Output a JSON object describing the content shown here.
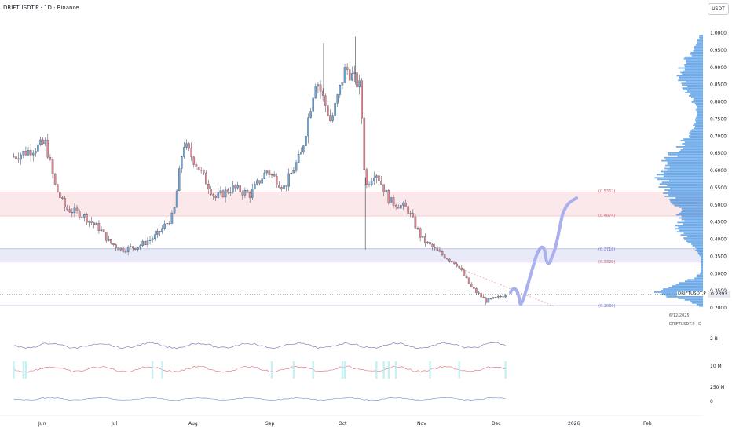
{
  "header": {
    "title": "DRIFTUSDT.P · 1D · Binance"
  },
  "currency_button": "USDT",
  "zones": {
    "upper_top_label": "(0.5367)",
    "upper_bottom_label": "(0.4674)",
    "lower_top_label": "(0.3718)",
    "lower_bottom_label": "(0.3329)",
    "base_label": "(0.2069)"
  },
  "last_price": {
    "symbol": "DRIFTUSDT.P",
    "value": "0.2393"
  },
  "info": {
    "date": "6/12/2025",
    "series": "DRIFTUSDT.P ⋅ D"
  },
  "colors": {
    "up": "#6fa7d8",
    "down": "#e58a93",
    "profile": "#3d8fe0",
    "path": "#aab0ee",
    "zone_red": "#f7d6da",
    "zone_blue": "#d6d8f3"
  },
  "chart_data": {
    "type": "candlestick",
    "title": "DRIFTUSDT.P · 1D · Binance",
    "y_ticks": [
      "1.0000",
      "0.9500",
      "0.9000",
      "0.8500",
      "0.8000",
      "0.7500",
      "0.7000",
      "0.6500",
      "0.6000",
      "0.5500",
      "0.5000",
      "0.4500",
      "0.4000",
      "0.3500",
      "0.3000",
      "0.2500",
      "0.2000"
    ],
    "y_range": [
      0.19,
      1.02
    ],
    "x_labels": [
      "Jun",
      "Jul",
      "Aug",
      "Sep",
      "Oct",
      "Nov",
      "Dec",
      "2026",
      "Feb"
    ],
    "close_path": [
      {
        "date": "2025-05-20",
        "close": 0.64
      },
      {
        "date": "2025-05-27",
        "close": 0.66
      },
      {
        "date": "2025-06-02",
        "close": 0.68
      },
      {
        "date": "2025-06-06",
        "close": 0.55
      },
      {
        "date": "2025-06-10",
        "close": 0.49
      },
      {
        "date": "2025-06-17",
        "close": 0.47
      },
      {
        "date": "2025-06-24",
        "close": 0.43
      },
      {
        "date": "2025-06-28",
        "close": 0.39
      },
      {
        "date": "2025-07-03",
        "close": 0.37
      },
      {
        "date": "2025-07-10",
        "close": 0.38
      },
      {
        "date": "2025-07-17",
        "close": 0.41
      },
      {
        "date": "2025-07-24",
        "close": 0.47
      },
      {
        "date": "2025-07-28",
        "close": 0.68
      },
      {
        "date": "2025-08-03",
        "close": 0.61
      },
      {
        "date": "2025-08-10",
        "close": 0.52
      },
      {
        "date": "2025-08-17",
        "close": 0.55
      },
      {
        "date": "2025-08-24",
        "close": 0.53
      },
      {
        "date": "2025-08-31",
        "close": 0.6
      },
      {
        "date": "2025-09-07",
        "close": 0.55
      },
      {
        "date": "2025-09-14",
        "close": 0.65
      },
      {
        "date": "2025-09-20",
        "close": 0.87
      },
      {
        "date": "2025-09-26",
        "close": 0.74
      },
      {
        "date": "2025-10-02",
        "close": 0.9
      },
      {
        "date": "2025-10-08",
        "close": 0.84
      },
      {
        "date": "2025-10-10",
        "close": 0.55
      },
      {
        "date": "2025-10-14",
        "close": 0.6
      },
      {
        "date": "2025-10-20",
        "close": 0.51
      },
      {
        "date": "2025-10-27",
        "close": 0.49
      },
      {
        "date": "2025-11-02",
        "close": 0.4
      },
      {
        "date": "2025-11-09",
        "close": 0.36
      },
      {
        "date": "2025-11-16",
        "close": 0.33
      },
      {
        "date": "2025-11-22",
        "close": 0.26
      },
      {
        "date": "2025-11-28",
        "close": 0.22
      },
      {
        "date": "2025-12-03",
        "close": 0.23
      },
      {
        "date": "2025-12-06",
        "close": 0.24
      }
    ],
    "volume_profile": "right-side horizontal histogram",
    "drawn_projection": "hand-drawn path from 0.24 rising to ~0.52",
    "indicators": {
      "panes": 3,
      "labels": [
        "2 B",
        "10 M",
        "250 M",
        "0"
      ]
    }
  }
}
